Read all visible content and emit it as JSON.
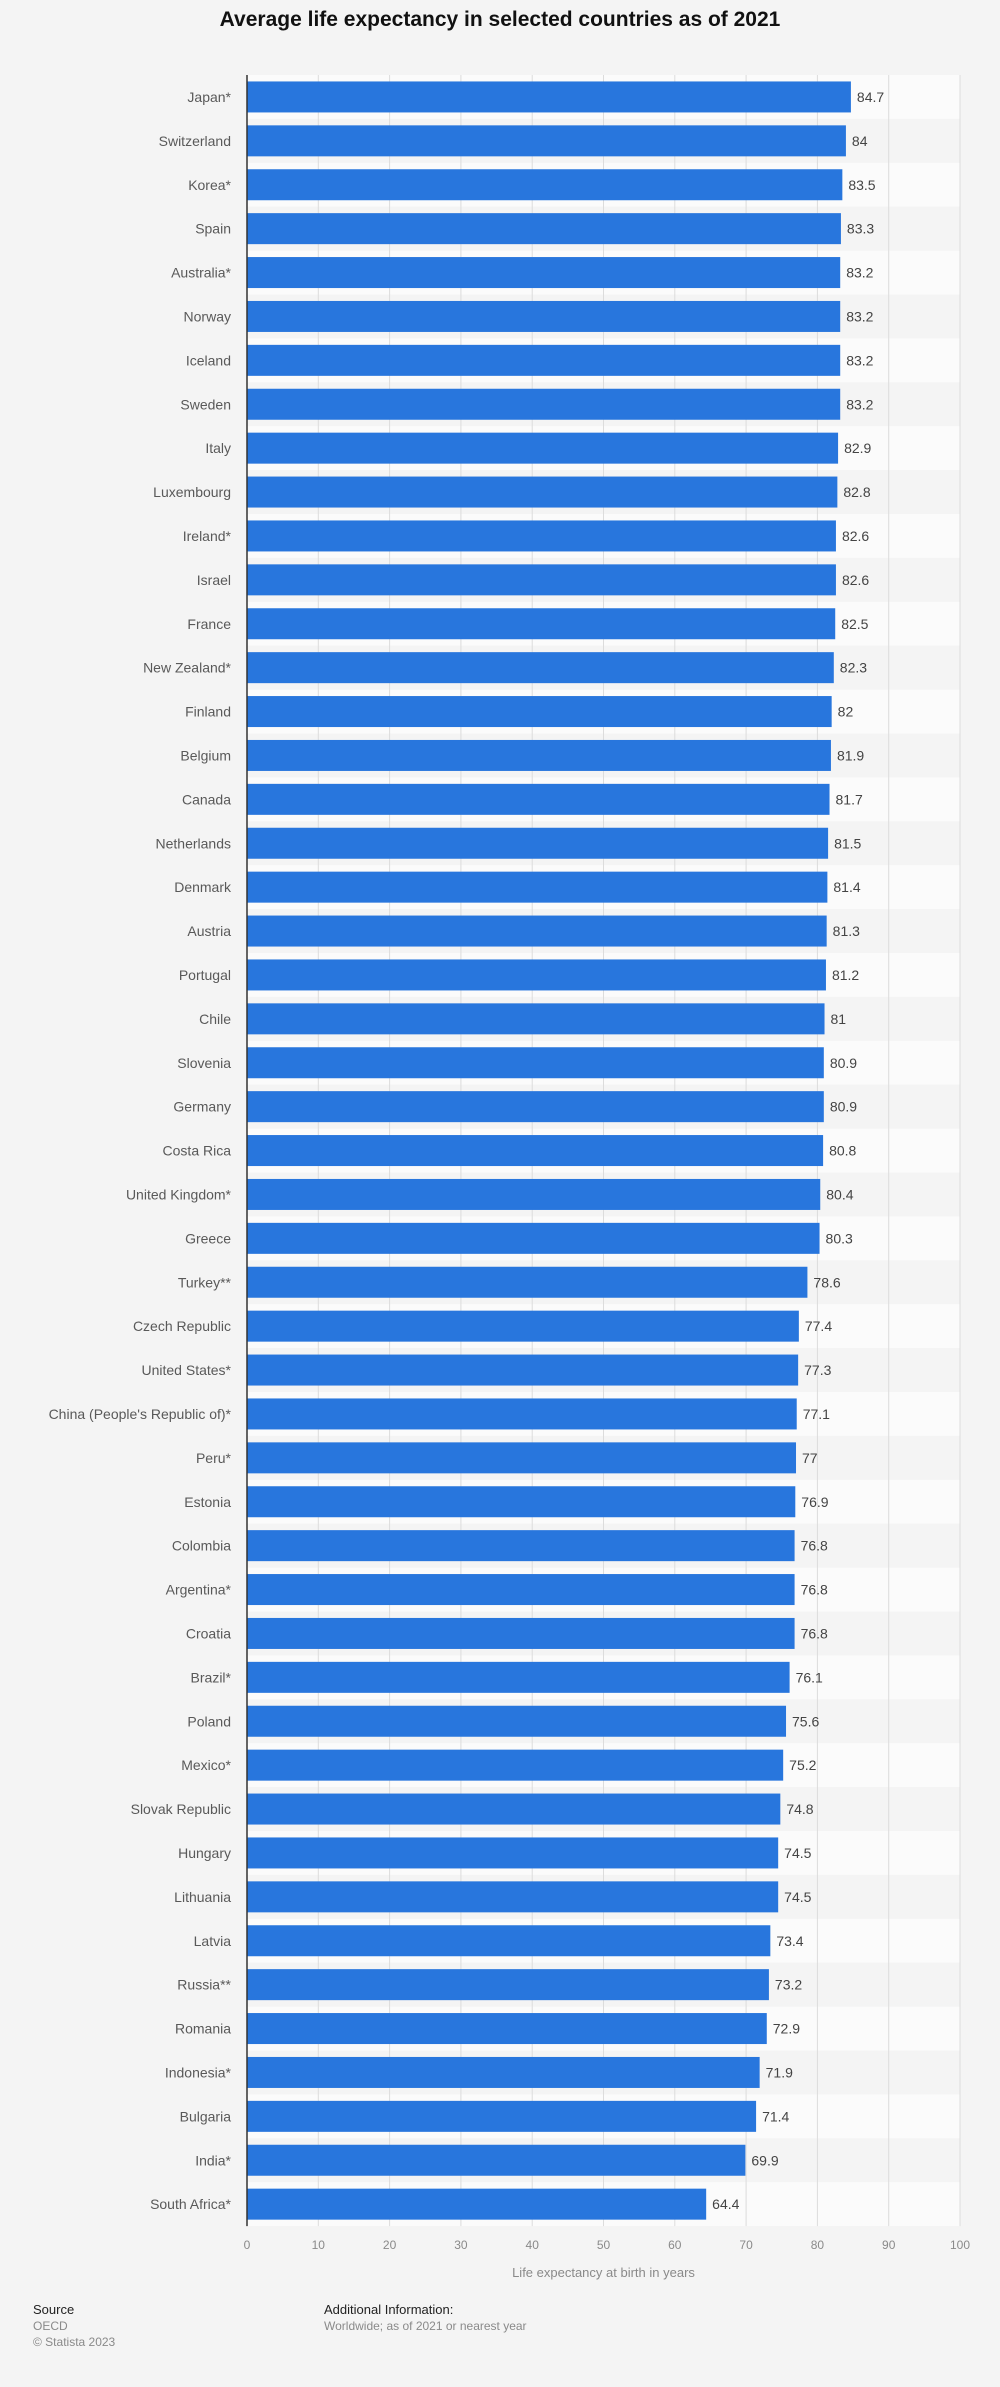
{
  "title": "Average life expectancy in selected countries as of 2021",
  "colors": {
    "bar": "#2876dd",
    "band": "#fbfbfb",
    "grid": "#dcdcdc",
    "axis": "#333333"
  },
  "chart_data": {
    "type": "bar",
    "orientation": "horizontal",
    "title": "Average life expectancy in selected countries as of 2021",
    "xlabel": "Life expectancy at birth in years",
    "ylabel": "",
    "xlim": [
      0,
      100
    ],
    "ticks": [
      0,
      10,
      20,
      30,
      40,
      50,
      60,
      70,
      80,
      90,
      100
    ],
    "grid": true,
    "categories": [
      "Japan*",
      "Switzerland",
      "Korea*",
      "Spain",
      "Australia*",
      "Norway",
      "Iceland",
      "Sweden",
      "Italy",
      "Luxembourg",
      "Ireland*",
      "Israel",
      "France",
      "New Zealand*",
      "Finland",
      "Belgium",
      "Canada",
      "Netherlands",
      "Denmark",
      "Austria",
      "Portugal",
      "Chile",
      "Slovenia",
      "Germany",
      "Costa Rica",
      "United Kingdom*",
      "Greece",
      "Turkey**",
      "Czech Republic",
      "United States*",
      "China (People's Republic of)*",
      "Peru*",
      "Estonia",
      "Colombia",
      "Argentina*",
      "Croatia",
      "Brazil*",
      "Poland",
      "Mexico*",
      "Slovak Republic",
      "Hungary",
      "Lithuania",
      "Latvia",
      "Russia**",
      "Romania",
      "Indonesia*",
      "Bulgaria",
      "India*",
      "South Africa*"
    ],
    "values": [
      84.7,
      84,
      83.5,
      83.3,
      83.2,
      83.2,
      83.2,
      83.2,
      82.9,
      82.8,
      82.6,
      82.6,
      82.5,
      82.3,
      82,
      81.9,
      81.7,
      81.5,
      81.4,
      81.3,
      81.2,
      81,
      80.9,
      80.9,
      80.8,
      80.4,
      80.3,
      78.6,
      77.4,
      77.3,
      77.1,
      77,
      76.9,
      76.8,
      76.8,
      76.8,
      76.1,
      75.6,
      75.2,
      74.8,
      74.5,
      74.5,
      73.4,
      73.2,
      72.9,
      71.9,
      71.4,
      69.9,
      64.4
    ]
  },
  "footer": {
    "source_heading": "Source",
    "source_name": "OECD",
    "copyright": "© Statista 2023",
    "info_heading": "Additional Information:",
    "info_text": "Worldwide; as of 2021 or nearest year"
  }
}
